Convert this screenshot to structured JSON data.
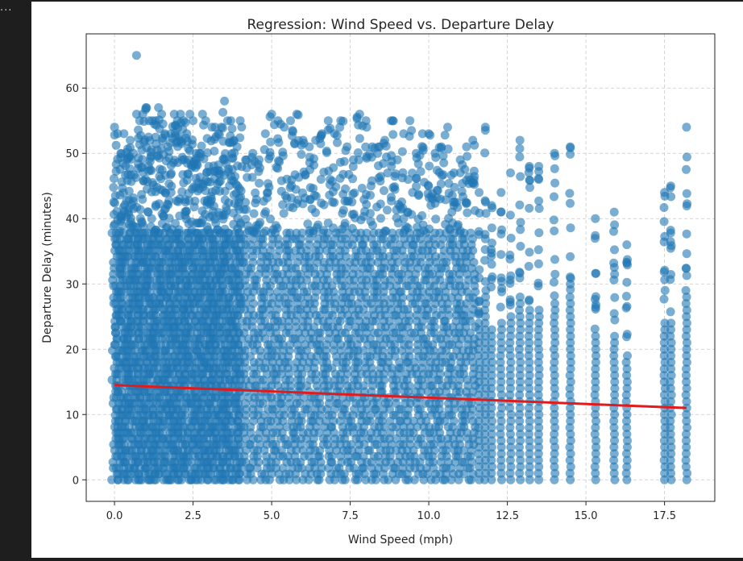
{
  "frame": {
    "ellipsis": "..."
  },
  "chart_data": {
    "type": "scatter",
    "title": "Regression: Wind Speed vs. Departure Delay",
    "xlabel": "Wind Speed (mph)",
    "ylabel": "Departure Delay (minutes)",
    "xlim": [
      -0.9,
      19.1
    ],
    "ylim": [
      -3.3,
      68.3
    ],
    "xticks": [
      0.0,
      2.5,
      5.0,
      7.5,
      10.0,
      12.5,
      15.0,
      17.5
    ],
    "xtick_labels": [
      "0.0",
      "2.5",
      "5.0",
      "7.5",
      "10.0",
      "12.5",
      "15.0",
      "17.5"
    ],
    "yticks": [
      0,
      10,
      20,
      30,
      40,
      50,
      60
    ],
    "ytick_labels": [
      "0",
      "10",
      "20",
      "30",
      "40",
      "50",
      "60"
    ],
    "grid": true,
    "colors": {
      "points": "#1f77b4",
      "regression": "#e31a1c",
      "grid": "#c8c8c8"
    },
    "point_columns": [
      {
        "x": 0.0,
        "ymax": 54
      },
      {
        "x": 0.1,
        "ymax": 53
      },
      {
        "x": 0.2,
        "ymax": 50
      },
      {
        "x": 0.3,
        "ymax": 53
      },
      {
        "x": 0.4,
        "ymax": 49
      },
      {
        "x": 0.5,
        "ymax": 52
      },
      {
        "x": 0.6,
        "ymax": 50
      },
      {
        "x": 0.7,
        "ymax": 56
      },
      {
        "x": 0.8,
        "ymax": 55
      },
      {
        "x": 0.9,
        "ymax": 56
      },
      {
        "x": 1.0,
        "ymax": 57
      },
      {
        "x": 1.1,
        "ymax": 55
      },
      {
        "x": 1.2,
        "ymax": 55
      },
      {
        "x": 1.3,
        "ymax": 55
      },
      {
        "x": 1.4,
        "ymax": 57
      },
      {
        "x": 1.5,
        "ymax": 56
      },
      {
        "x": 1.6,
        "ymax": 53
      },
      {
        "x": 1.7,
        "ymax": 51
      },
      {
        "x": 1.8,
        "ymax": 53
      },
      {
        "x": 1.9,
        "ymax": 56
      },
      {
        "x": 2.0,
        "ymax": 55
      },
      {
        "x": 2.1,
        "ymax": 56
      },
      {
        "x": 2.2,
        "ymax": 55
      },
      {
        "x": 2.3,
        "ymax": 53
      },
      {
        "x": 2.4,
        "ymax": 56
      },
      {
        "x": 2.5,
        "ymax": 55
      },
      {
        "x": 2.6,
        "ymax": 50
      },
      {
        "x": 2.7,
        "ymax": 50
      },
      {
        "x": 2.8,
        "ymax": 56
      },
      {
        "x": 2.9,
        "ymax": 55
      },
      {
        "x": 3.0,
        "ymax": 48
      },
      {
        "x": 3.1,
        "ymax": 54
      },
      {
        "x": 3.2,
        "ymax": 54
      },
      {
        "x": 3.3,
        "ymax": 53
      },
      {
        "x": 3.4,
        "ymax": 54
      },
      {
        "x": 3.5,
        "ymax": 58
      },
      {
        "x": 3.6,
        "ymax": 55
      },
      {
        "x": 3.7,
        "ymax": 55
      },
      {
        "x": 3.8,
        "ymax": 52
      },
      {
        "x": 3.9,
        "ymax": 51
      },
      {
        "x": 4.0,
        "ymax": 55
      },
      {
        "x": 4.2,
        "ymax": 49
      },
      {
        "x": 4.4,
        "ymax": 50
      },
      {
        "x": 4.6,
        "ymax": 49
      },
      {
        "x": 4.8,
        "ymax": 53
      },
      {
        "x": 5.0,
        "ymax": 56
      },
      {
        "x": 5.2,
        "ymax": 55
      },
      {
        "x": 5.4,
        "ymax": 54
      },
      {
        "x": 5.6,
        "ymax": 55
      },
      {
        "x": 5.8,
        "ymax": 56
      },
      {
        "x": 6.0,
        "ymax": 52
      },
      {
        "x": 6.2,
        "ymax": 51
      },
      {
        "x": 6.4,
        "ymax": 52
      },
      {
        "x": 6.6,
        "ymax": 53
      },
      {
        "x": 6.8,
        "ymax": 55
      },
      {
        "x": 7.0,
        "ymax": 53
      },
      {
        "x": 7.2,
        "ymax": 55
      },
      {
        "x": 7.4,
        "ymax": 51
      },
      {
        "x": 7.6,
        "ymax": 49
      },
      {
        "x": 7.8,
        "ymax": 56
      },
      {
        "x": 8.0,
        "ymax": 55
      },
      {
        "x": 8.2,
        "ymax": 51
      },
      {
        "x": 8.4,
        "ymax": 51
      },
      {
        "x": 8.6,
        "ymax": 52
      },
      {
        "x": 8.8,
        "ymax": 55
      },
      {
        "x": 9.0,
        "ymax": 49
      },
      {
        "x": 9.2,
        "ymax": 53
      },
      {
        "x": 9.4,
        "ymax": 55
      },
      {
        "x": 9.6,
        "ymax": 50
      },
      {
        "x": 9.8,
        "ymax": 53
      },
      {
        "x": 10.0,
        "ymax": 53
      },
      {
        "x": 10.2,
        "ymax": 50
      },
      {
        "x": 10.4,
        "ymax": 51
      },
      {
        "x": 10.6,
        "ymax": 54
      },
      {
        "x": 10.8,
        "ymax": 47
      },
      {
        "x": 11.0,
        "ymax": 49
      },
      {
        "x": 11.2,
        "ymax": 51
      },
      {
        "x": 11.4,
        "ymax": 52
      },
      {
        "x": 11.6,
        "ymax": 44
      },
      {
        "x": 11.8,
        "ymax": 54
      },
      {
        "x": 12.0,
        "ymax": 42
      },
      {
        "x": 12.3,
        "ymax": 44
      },
      {
        "x": 12.6,
        "ymax": 47
      },
      {
        "x": 12.9,
        "ymax": 52
      },
      {
        "x": 13.2,
        "ymax": 48
      },
      {
        "x": 13.5,
        "ymax": 48
      },
      {
        "x": 14.0,
        "ymax": 50
      },
      {
        "x": 14.5,
        "ymax": 51
      },
      {
        "x": 15.3,
        "ymax": 40
      },
      {
        "x": 15.9,
        "ymax": 41
      },
      {
        "x": 16.3,
        "ymax": 36
      },
      {
        "x": 17.5,
        "ymax": 44
      },
      {
        "x": 17.7,
        "ymax": 45
      },
      {
        "x": 18.2,
        "ymax": 54
      }
    ],
    "outliers": [
      {
        "x": 0.7,
        "y": 65
      }
    ],
    "regression": {
      "x": [
        0.0,
        18.2
      ],
      "y": [
        14.5,
        11.0
      ]
    }
  }
}
